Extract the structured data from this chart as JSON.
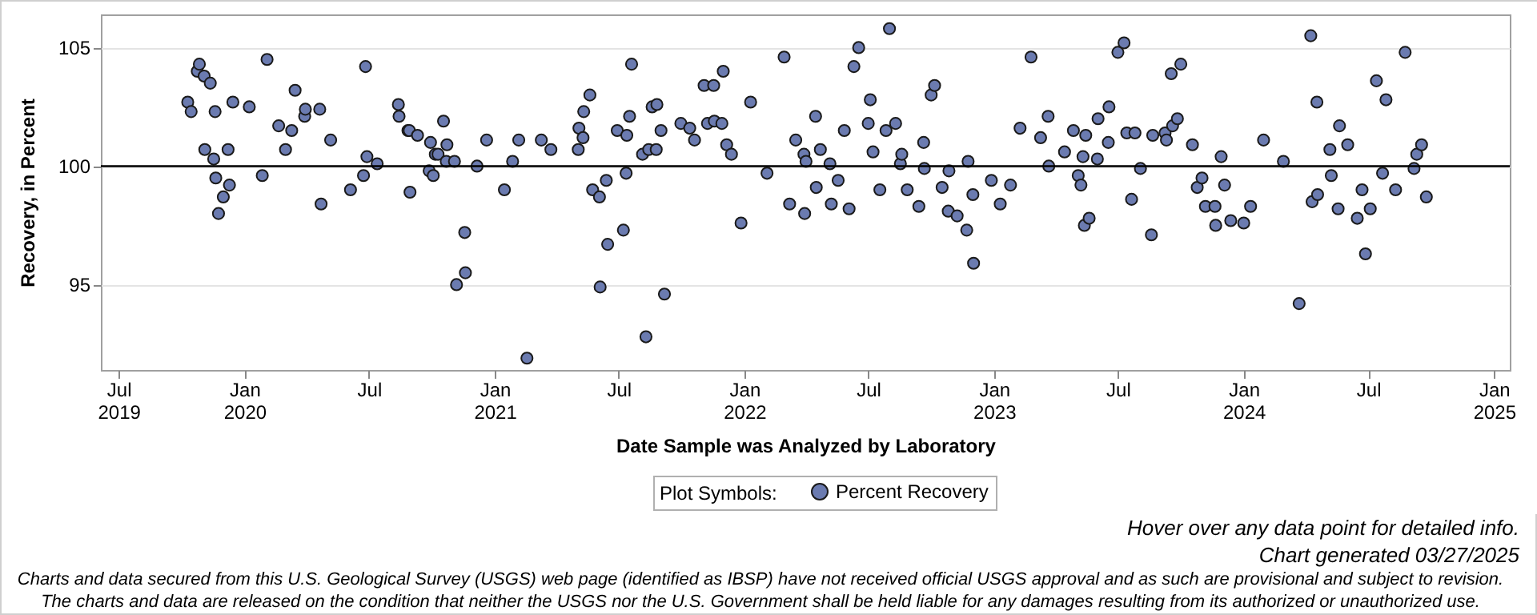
{
  "chart_data": {
    "type": "scatter",
    "xlabel": "Date Sample was Analyzed by Laboratory",
    "ylabel": "Recovery, in Percent",
    "legend_title": "Plot Symbols:",
    "legend": "bottom",
    "grid": "y",
    "marker": "circle",
    "xlim": [
      "2019-06-05",
      "2025-01-24"
    ],
    "xticks": [
      {
        "value": "2019-07-01",
        "label": "Jul\n2019"
      },
      {
        "value": "2020-01-01",
        "label": "Jan\n2020"
      },
      {
        "value": "2020-07-01",
        "label": "Jul"
      },
      {
        "value": "2021-01-01",
        "label": "Jan\n2021"
      },
      {
        "value": "2021-07-01",
        "label": "Jul"
      },
      {
        "value": "2022-01-01",
        "label": "Jan\n2022"
      },
      {
        "value": "2022-07-01",
        "label": "Jul"
      },
      {
        "value": "2023-01-01",
        "label": "Jan\n2023"
      },
      {
        "value": "2023-07-01",
        "label": "Jul"
      },
      {
        "value": "2024-01-01",
        "label": "Jan\n2024"
      },
      {
        "value": "2024-07-01",
        "label": "Jul"
      },
      {
        "value": "2025-01-01",
        "label": "Jan\n2025"
      }
    ],
    "ylim": [
      91.4,
      106.4
    ],
    "yticks": [
      95,
      100,
      105
    ],
    "ref_lines": [
      {
        "axis": "y",
        "value": 100,
        "color": "#000000"
      }
    ],
    "annotations": [
      "Hover over any data point for detailed info.",
      "Chart generated 03/27/2025",
      "Charts and data secured from this U.S. Geological Survey (USGS) web page (identified as IBSP) have not received official USGS approval and as such are provisional and subject to revision.",
      "The charts and data are released on the condition that neither the USGS nor the U.S. Government shall be held liable for any damages resulting from its authorized or unauthorized use."
    ],
    "x": [
      "2019-10-10",
      "2019-10-15",
      "2019-10-24",
      "2019-10-27",
      "2019-11-03",
      "2019-11-04",
      "2019-11-12",
      "2019-11-17",
      "2019-11-19",
      "2019-11-20",
      "2019-11-24",
      "2019-12-01",
      "2019-12-08",
      "2019-12-10",
      "2019-12-15",
      "2020-01-08",
      "2020-01-27",
      "2020-02-03",
      "2020-02-20",
      "2020-03-01",
      "2020-03-10",
      "2020-03-15",
      "2020-03-29",
      "2020-03-30",
      "2020-04-20",
      "2020-04-22",
      "2020-05-06",
      "2020-06-04",
      "2020-06-23",
      "2020-06-26",
      "2020-06-28",
      "2020-07-13",
      "2020-08-13",
      "2020-08-14",
      "2020-08-27",
      "2020-08-29",
      "2020-08-30",
      "2020-09-10",
      "2020-09-27",
      "2020-09-29",
      "2020-10-03",
      "2020-10-06",
      "2020-10-10",
      "2020-10-18",
      "2020-10-23",
      "2020-10-22",
      "2020-11-03",
      "2020-11-06",
      "2020-11-18",
      "2020-11-19",
      "2020-12-06",
      "2020-12-20",
      "2021-01-15",
      "2021-01-27",
      "2021-02-05",
      "2021-02-17",
      "2021-03-10",
      "2021-03-24",
      "2021-05-03",
      "2021-05-04",
      "2021-05-10",
      "2021-05-11",
      "2021-05-20",
      "2021-05-24",
      "2021-06-03",
      "2021-06-04",
      "2021-06-13",
      "2021-06-15",
      "2021-06-29",
      "2021-07-08",
      "2021-07-12",
      "2021-07-13",
      "2021-07-17",
      "2021-07-20",
      "2021-08-05",
      "2021-08-10",
      "2021-08-14",
      "2021-08-19",
      "2021-08-26",
      "2021-08-25",
      "2021-09-01",
      "2021-09-06",
      "2021-09-30",
      "2021-10-13",
      "2021-10-20",
      "2021-11-03",
      "2021-11-08",
      "2021-11-17",
      "2021-11-18",
      "2021-11-29",
      "2021-12-01",
      "2021-12-06",
      "2021-12-13",
      "2021-12-27",
      "2022-01-10",
      "2022-02-03",
      "2022-02-28",
      "2022-03-08",
      "2022-03-17",
      "2022-03-29",
      "2022-03-30",
      "2022-04-01",
      "2022-04-15",
      "2022-04-16",
      "2022-04-22",
      "2022-05-06",
      "2022-05-08",
      "2022-05-18",
      "2022-05-27",
      "2022-06-03",
      "2022-06-10",
      "2022-06-17",
      "2022-07-01",
      "2022-07-04",
      "2022-07-08",
      "2022-07-18",
      "2022-07-27",
      "2022-08-01",
      "2022-08-10",
      "2022-08-17",
      "2022-08-19",
      "2022-08-27",
      "2022-09-13",
      "2022-09-20",
      "2022-09-21",
      "2022-10-01",
      "2022-10-06",
      "2022-10-17",
      "2022-10-27",
      "2022-10-26",
      "2022-11-08",
      "2022-11-22",
      "2022-11-24",
      "2022-12-01",
      "2022-12-02",
      "2022-12-28",
      "2023-01-10",
      "2023-01-25",
      "2023-02-08",
      "2023-02-24",
      "2023-03-10",
      "2023-03-21",
      "2023-03-22",
      "2023-04-14",
      "2023-04-27",
      "2023-05-04",
      "2023-05-08",
      "2023-05-11",
      "2023-05-13",
      "2023-05-15",
      "2023-05-20",
      "2023-06-01",
      "2023-06-02",
      "2023-06-17",
      "2023-06-18",
      "2023-07-01",
      "2023-07-10",
      "2023-07-14",
      "2023-07-21",
      "2023-07-26",
      "2023-08-03",
      "2023-08-19",
      "2023-08-21",
      "2023-09-08",
      "2023-09-10",
      "2023-09-17",
      "2023-09-19",
      "2023-09-26",
      "2023-10-01",
      "2023-10-18",
      "2023-10-25",
      "2023-11-01",
      "2023-11-06",
      "2023-11-20",
      "2023-11-21",
      "2023-11-29",
      "2023-12-04",
      "2023-12-13",
      "2024-01-01",
      "2024-01-11",
      "2024-01-30",
      "2024-02-28",
      "2024-03-22",
      "2024-04-08",
      "2024-04-10",
      "2024-04-17",
      "2024-04-18",
      "2024-05-06",
      "2024-05-08",
      "2024-05-18",
      "2024-05-20",
      "2024-06-01",
      "2024-06-15",
      "2024-06-22",
      "2024-06-27",
      "2024-07-04",
      "2024-07-13",
      "2024-07-22",
      "2024-07-27",
      "2024-08-10",
      "2024-08-24",
      "2024-09-06",
      "2024-09-10",
      "2024-09-17",
      "2024-09-24"
    ],
    "series": [
      {
        "name": "Percent Recovery",
        "color": "#6b7bb0",
        "values": [
          102.7,
          102.3,
          104.0,
          104.3,
          103.8,
          100.7,
          103.5,
          100.3,
          102.3,
          99.5,
          98.0,
          98.7,
          100.7,
          99.2,
          102.7,
          102.5,
          99.6,
          104.5,
          101.7,
          100.7,
          101.5,
          103.2,
          102.1,
          102.4,
          102.4,
          98.4,
          101.1,
          99.0,
          99.6,
          104.2,
          100.4,
          100.1,
          102.6,
          102.1,
          101.5,
          101.5,
          98.9,
          101.3,
          99.8,
          101.0,
          99.6,
          100.5,
          100.5,
          101.9,
          100.9,
          100.2,
          100.2,
          95.0,
          97.2,
          95.5,
          100.0,
          101.1,
          99.0,
          100.2,
          101.1,
          91.9,
          101.1,
          100.7,
          100.7,
          101.6,
          101.2,
          102.3,
          103.0,
          99.0,
          98.7,
          94.9,
          99.4,
          96.7,
          101.5,
          97.3,
          99.7,
          101.3,
          102.1,
          104.3,
          100.5,
          92.8,
          100.7,
          102.5,
          102.6,
          100.7,
          101.5,
          94.6,
          101.8,
          101.6,
          101.1,
          103.4,
          101.8,
          103.4,
          101.9,
          101.8,
          104.0,
          100.9,
          100.5,
          97.6,
          102.7,
          99.7,
          104.6,
          98.4,
          101.1,
          100.5,
          98.0,
          100.2,
          102.1,
          99.1,
          100.7,
          100.1,
          98.4,
          99.4,
          101.5,
          98.2,
          104.2,
          105.0,
          101.8,
          102.8,
          100.6,
          99.0,
          101.5,
          105.8,
          101.8,
          100.1,
          100.5,
          99.0,
          98.3,
          101.0,
          99.9,
          103.0,
          103.4,
          99.1,
          99.8,
          98.1,
          97.9,
          97.3,
          100.2,
          98.8,
          95.9,
          99.4,
          98.4,
          99.2,
          101.6,
          104.6,
          101.2,
          102.1,
          100.0,
          100.6,
          101.5,
          99.6,
          99.2,
          100.4,
          97.5,
          101.3,
          97.8,
          100.3,
          102.0,
          101.0,
          102.5,
          104.8,
          105.2,
          101.4,
          98.6,
          101.4,
          99.9,
          97.1,
          101.3,
          101.4,
          101.1,
          103.9,
          101.7,
          102.0,
          104.3,
          100.9,
          99.1,
          99.5,
          98.3,
          98.3,
          97.5,
          100.4,
          99.2,
          97.7,
          97.6,
          98.3,
          101.1,
          100.2,
          94.2,
          105.5,
          98.5,
          102.7,
          98.8,
          100.7,
          99.6,
          98.2,
          101.7,
          100.9,
          97.8,
          99.0,
          96.3,
          98.2,
          103.6,
          99.7,
          102.8,
          99.0,
          104.8,
          99.9,
          100.5,
          100.9,
          98.7
        ]
      }
    ]
  }
}
